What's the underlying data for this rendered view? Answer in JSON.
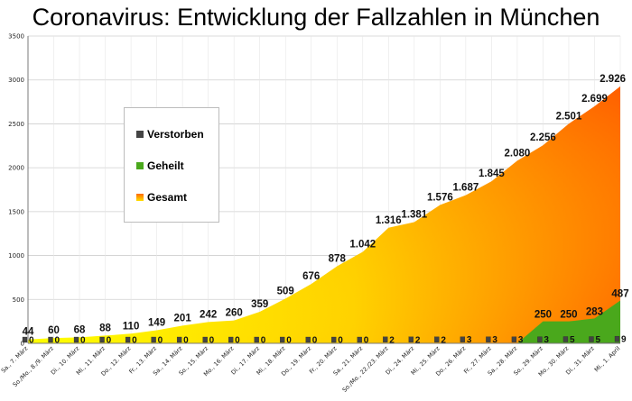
{
  "chart_data": {
    "type": "area",
    "title": "Coronavirus: Entwicklung der Fallzahlen in München",
    "xlabel": "",
    "ylabel": "",
    "ylim": [
      0,
      3500
    ],
    "yticks": [
      0,
      500,
      1000,
      1500,
      2000,
      2500,
      3000,
      3500
    ],
    "grid": true,
    "legend_position": "left",
    "categories": [
      "Sa., 7. März",
      "So./Mo., 8./9. März",
      "Di., 10. März",
      "Mi., 11. März",
      "Do., 12. März",
      "Fr., 13. März",
      "Sa., 14. März",
      "So., 15. März",
      "Mo., 16. März",
      "Di., 17. März",
      "Mi., 18. März",
      "Do., 19. März",
      "Fr., 20. März",
      "Sa., 21. März",
      "So./Mo., 22./23. März",
      "Di., 24. März",
      "Mi., 25. März",
      "Do., 26. März",
      "Fr., 27. März",
      "Sa., 28. März",
      "So., 29. März",
      "Mo., 30. März",
      "Di., 31. März",
      "Mi., 1. April"
    ],
    "series": [
      {
        "name": "Verstorben",
        "color": "#444444",
        "values": [
          0,
          0,
          0,
          0,
          0,
          0,
          0,
          0,
          0,
          0,
          0,
          0,
          0,
          0,
          2,
          2,
          2,
          3,
          3,
          3,
          3,
          5,
          5,
          9
        ],
        "labels": [
          "0",
          "0",
          "0",
          "0",
          "0",
          "0",
          "0",
          "0",
          "0",
          "0",
          "0",
          "0",
          "0",
          "0",
          "2",
          "2",
          "2",
          "3",
          "3",
          "3",
          "3",
          "5",
          "5",
          "9"
        ]
      },
      {
        "name": "Geheilt",
        "color": "#4aa81c",
        "values": [
          0,
          0,
          0,
          0,
          0,
          0,
          0,
          0,
          0,
          0,
          0,
          0,
          0,
          0,
          0,
          0,
          0,
          0,
          0,
          0,
          250,
          250,
          283,
          487
        ],
        "labels": [
          "",
          "",
          "",
          "",
          "",
          "",
          "",
          "",
          "",
          "",
          "",
          "",
          "",
          "",
          "",
          "",
          "",
          "",
          "",
          "",
          "250",
          "250",
          "283",
          "487"
        ]
      },
      {
        "name": "Gesamt",
        "color": "#ff8a00",
        "values": [
          44,
          60,
          68,
          88,
          110,
          149,
          201,
          242,
          260,
          359,
          509,
          676,
          878,
          1042,
          1316,
          1381,
          1576,
          1687,
          1845,
          2080,
          2256,
          2501,
          2699,
          2926
        ],
        "labels": [
          "44",
          "60",
          "68",
          "88",
          "110",
          "149",
          "201",
          "242",
          "260",
          "359",
          "509",
          "676",
          "878",
          "1.042",
          "1.316",
          "1.381",
          "1.576",
          "1.687",
          "1.845",
          "2.080",
          "2.256",
          "2.501",
          "2.699",
          "2.926"
        ]
      }
    ]
  },
  "legend": {
    "items": [
      {
        "label": "Verstorben",
        "color": "#444444"
      },
      {
        "label": "Geheilt",
        "color": "#4aa81c"
      },
      {
        "label": "Gesamt",
        "color": "#ff8a00"
      }
    ]
  }
}
